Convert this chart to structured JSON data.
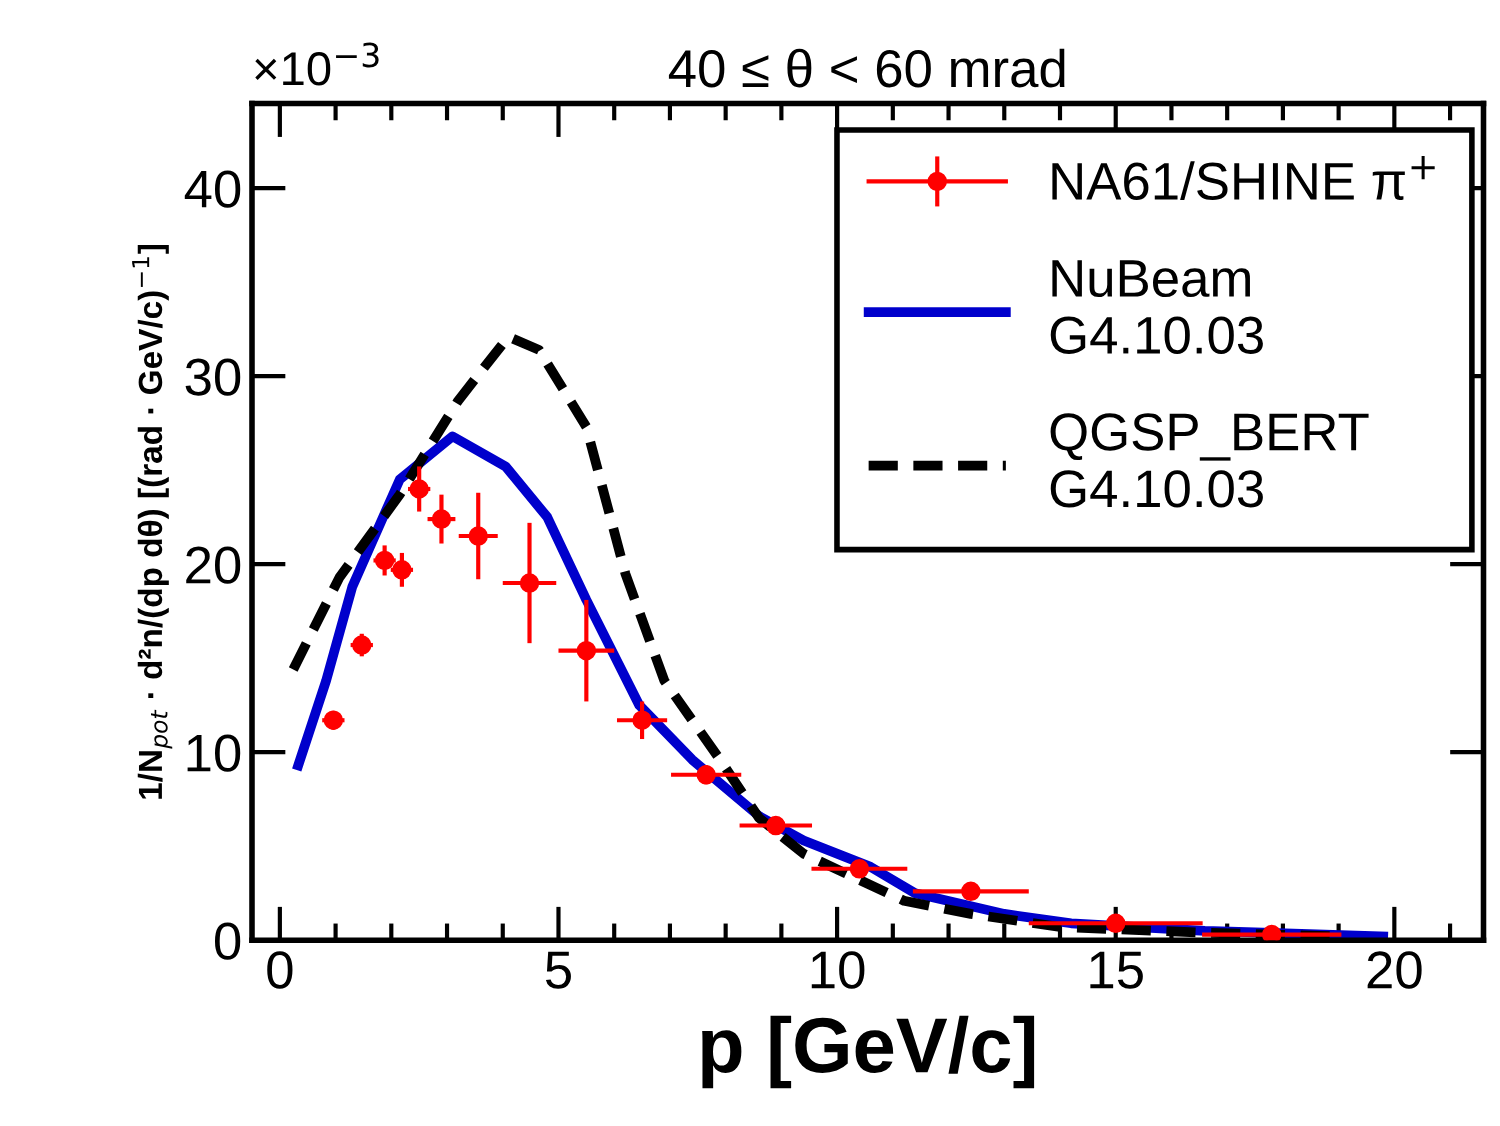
{
  "chart_data": {
    "type": "scatter",
    "title": "40 ≤ θ < 60 mrad",
    "xlabel": "p [GeV/c]",
    "ylabel": "1/N$_{pot}$ · d²n/(dp dθ) [(rad · GeV/c)$^{−1}$]",
    "annotations": [
      "×10$^{−3}$"
    ],
    "xlim": [
      -0.5,
      21.6
    ],
    "ylim": [
      0,
      44.5
    ],
    "xticks": [
      0,
      5,
      10,
      15,
      20
    ],
    "yticks": [
      0,
      10,
      20,
      30,
      40
    ],
    "grid": false,
    "legend": "top right",
    "series": [
      {
        "name": "NA61/SHINE π$^{+}$",
        "color": "#ff0000",
        "marker": "circle",
        "x": [
          0.96,
          1.47,
          1.88,
          2.19,
          2.5,
          2.9,
          3.56,
          4.48,
          5.5,
          6.5,
          7.65,
          8.9,
          10.4,
          12.4,
          15.0,
          17.8
        ],
        "values": [
          11.7,
          15.7,
          20.2,
          19.7,
          24.0,
          22.4,
          21.5,
          19.0,
          15.4,
          11.7,
          8.8,
          6.1,
          3.8,
          2.6,
          0.9,
          0.3
        ],
        "errors": [
          0.5,
          0.6,
          0.8,
          0.9,
          1.2,
          1.3,
          2.3,
          3.2,
          2.7,
          1.0,
          0.5,
          0.4,
          0.3,
          0.3,
          0.2,
          0.2
        ],
        "xerrors": [
          0.2,
          0.2,
          0.2,
          0.2,
          0.2,
          0.25,
          0.35,
          0.48,
          0.5,
          0.45,
          0.63,
          0.65,
          0.86,
          1.04,
          1.56,
          1.25
        ]
      },
      {
        "name": "NuBeam\nG4.10.03",
        "type": "line",
        "color": "#0000cc",
        "line_style": "solid",
        "x": [
          0.33,
          0.83,
          1.3,
          2.15,
          3.1,
          4.05,
          4.8,
          5.5,
          6.45,
          7.4,
          8.6,
          9.4,
          10.6,
          11.4,
          13.0,
          14.2,
          16.6,
          19.8
        ],
        "values": [
          9.3,
          13.8,
          18.8,
          24.5,
          26.8,
          25.2,
          22.5,
          18.1,
          12.5,
          9.6,
          6.6,
          5.3,
          3.9,
          2.5,
          1.4,
          0.9,
          0.5,
          0.2
        ]
      },
      {
        "name": "QGSP_BERT\nG4.10.03",
        "type": "line",
        "color": "#000000",
        "line_style": "dashed",
        "x": [
          0.24,
          1.07,
          2.15,
          3.2,
          4.1,
          4.65,
          5.5,
          6.2,
          6.9,
          7.9,
          8.6,
          9.4,
          11.2,
          12.4,
          14.0,
          16.6,
          19.0
        ],
        "values": [
          14.4,
          19.3,
          23.7,
          28.7,
          32.1,
          31.4,
          27.3,
          19.5,
          13.8,
          9.6,
          6.5,
          4.6,
          2.1,
          1.4,
          0.7,
          0.4,
          0.2
        ]
      }
    ]
  }
}
